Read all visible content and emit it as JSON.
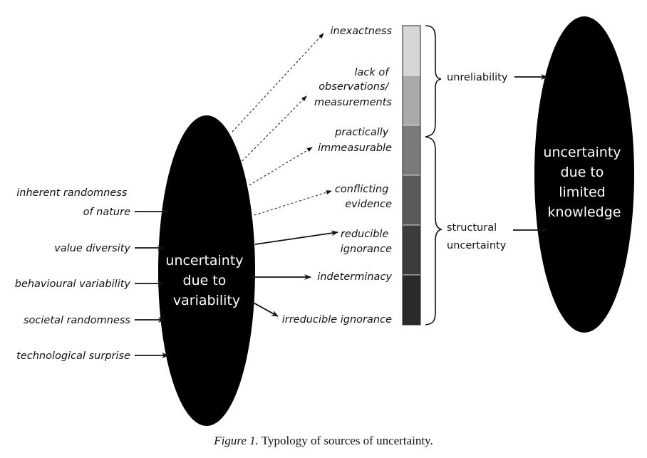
{
  "left_ellipse": {
    "label_lines": [
      "uncertainty",
      "due to",
      "variability"
    ],
    "fill": "#000000"
  },
  "right_ellipse": {
    "label_lines": [
      "uncertainty",
      "due to",
      "limited",
      "knowledge"
    ],
    "fill": "#000000"
  },
  "inputs": [
    {
      "lines": [
        "inherent randomness",
        "of nature"
      ]
    },
    {
      "lines": [
        "value diversity"
      ]
    },
    {
      "lines": [
        "behavioural variability"
      ]
    },
    {
      "lines": [
        "societal randomness"
      ]
    },
    {
      "lines": [
        "technological surprise"
      ]
    }
  ],
  "sources": [
    {
      "lines": [
        "inexactness"
      ],
      "arrow": "dashed",
      "shade": "#d6d6d6"
    },
    {
      "lines": [
        "lack of",
        "observations/",
        "measurements"
      ],
      "arrow": "dashed",
      "shade": "#a9a9a9"
    },
    {
      "lines": [
        "practically",
        "immeasurable"
      ],
      "arrow": "dashed",
      "shade": "#7a7a7a"
    },
    {
      "lines": [
        "conflicting",
        "evidence"
      ],
      "arrow": "dashed",
      "shade": "#5a5a5a"
    },
    {
      "lines": [
        "reducible",
        "ignorance"
      ],
      "arrow": "solid",
      "shade": "#3c3c3c"
    },
    {
      "lines": [
        "indeterminacy"
      ],
      "arrow": "solid",
      "shade": "#2a2a2a"
    },
    {
      "lines": [
        "irreducible ignorance"
      ],
      "arrow": "solid",
      "shade": "#1a1a1a"
    }
  ],
  "categories": [
    {
      "lines": [
        "unreliability"
      ]
    },
    {
      "lines": [
        "structural",
        "uncertainty"
      ]
    }
  ],
  "caption": {
    "figure": "Figure 1.",
    "text": " Typology of sources of uncertainty."
  }
}
